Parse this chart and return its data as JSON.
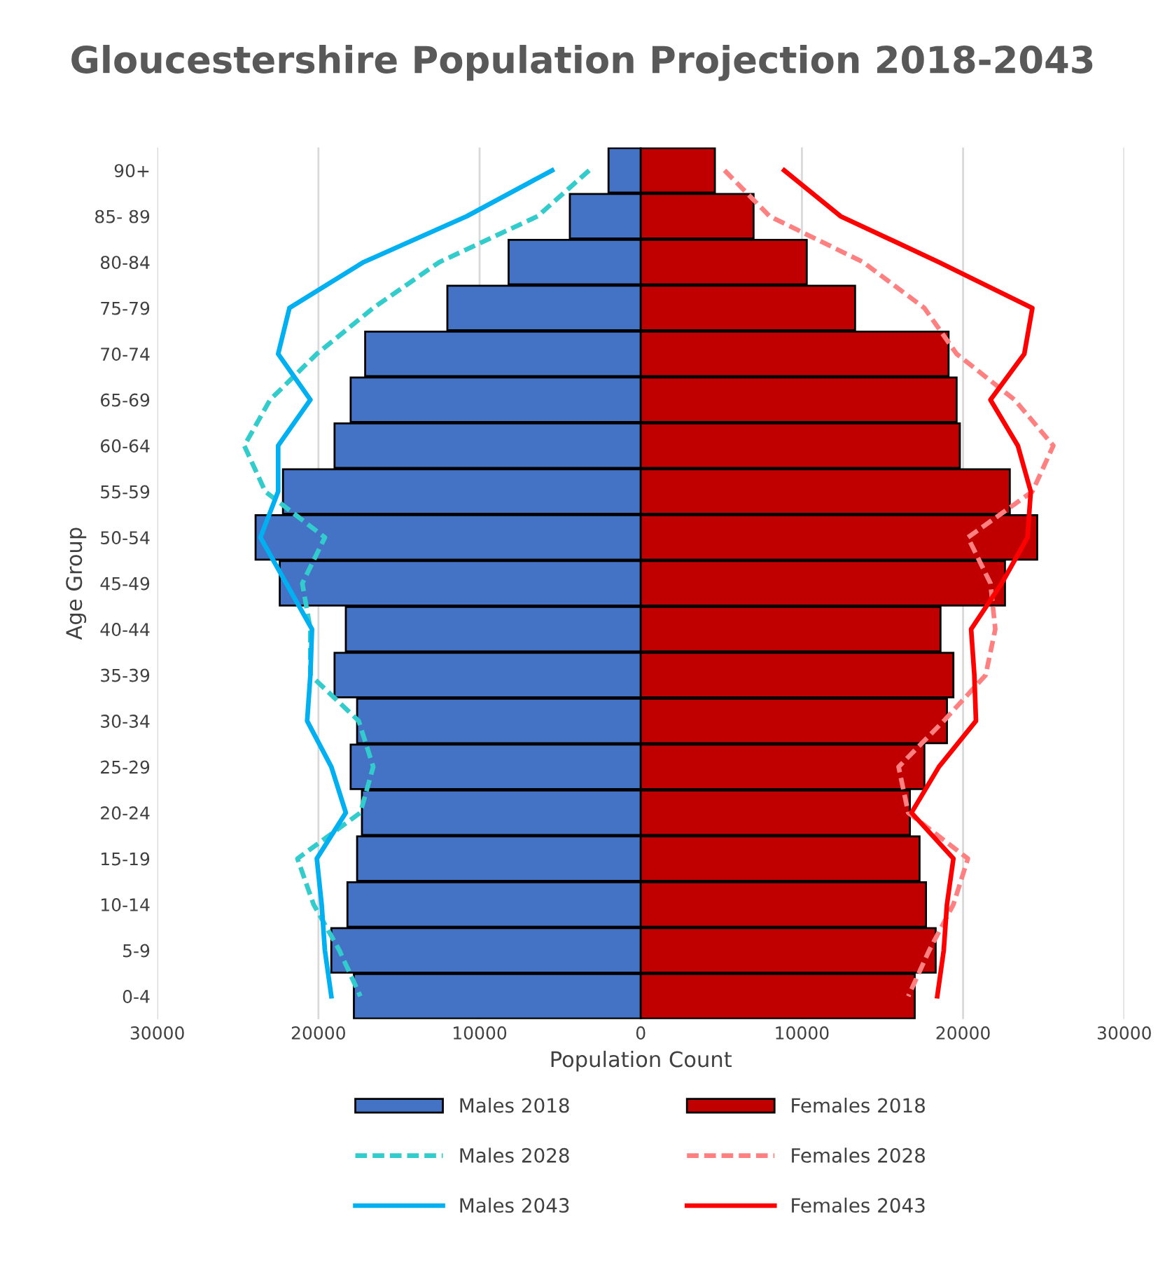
{
  "chart_data": {
    "type": "bar",
    "orientation": "horizontal",
    "title": "Gloucestershire Population Projection 2018-2043",
    "xlabel": "Population Count",
    "ylabel": "Age Group",
    "categories": [
      "90+",
      "85- 89",
      "80-84",
      "75-79",
      "70-74",
      "65-69",
      "60-64",
      "55-59",
      "50-54",
      "45-49",
      "40-44",
      "35-39",
      "30-34",
      "25-29",
      "20-24",
      "15-19",
      "10-14",
      "5-9",
      "0-4"
    ],
    "series": [
      {
        "name": "Males 2018",
        "color": "#4472c4",
        "values": [
          -2000,
          -4400,
          -8200,
          -12000,
          -17100,
          -18000,
          -19000,
          -22200,
          -23900,
          -22400,
          -18300,
          -19000,
          -17600,
          -18000,
          -17300,
          -17600,
          -18200,
          -19200,
          -17800
        ]
      },
      {
        "name": "Males 2028",
        "type": "line",
        "line_style": "dashed",
        "color": "#33cccc",
        "values": [
          -3200,
          -6400,
          -12500,
          -16600,
          -20100,
          -23000,
          -24600,
          -23300,
          -19600,
          -21000,
          -20500,
          -20500,
          -17500,
          -16600,
          -17400,
          -21300,
          -20300,
          -18700,
          -17400
        ]
      },
      {
        "name": "Males 2043",
        "type": "line",
        "line_style": "solid",
        "color": "#00b0f0",
        "values": [
          -5500,
          -10800,
          -17200,
          -21800,
          -22500,
          -20500,
          -22500,
          -22500,
          -23600,
          -22000,
          -20400,
          -20500,
          -20700,
          -19200,
          -18300,
          -20100,
          -19800,
          -19600,
          -19200
        ]
      },
      {
        "name": "Females 2018",
        "color": "#c00000",
        "values": [
          4600,
          7000,
          10300,
          13300,
          19100,
          19600,
          19800,
          22900,
          24600,
          22600,
          18600,
          19400,
          19000,
          17600,
          16700,
          17300,
          17700,
          18300,
          17000
        ]
      },
      {
        "name": "Females 2028",
        "type": "line",
        "line_style": "dashed",
        "color": "#ff8080",
        "values": [
          5200,
          8000,
          13800,
          17600,
          19600,
          23200,
          25600,
          24300,
          20300,
          21700,
          22000,
          21400,
          18800,
          16000,
          16600,
          20300,
          19400,
          17900,
          16600
        ]
      },
      {
        "name": "Females 2043",
        "type": "line",
        "line_style": "solid",
        "color": "#ff0000",
        "values": [
          8900,
          12400,
          18500,
          24300,
          23800,
          21700,
          23400,
          24200,
          24000,
          22400,
          20500,
          20700,
          20800,
          18500,
          16800,
          19400,
          19000,
          18800,
          18400
        ]
      }
    ],
    "xlim": [
      -30000,
      30000
    ],
    "xticks": [
      {
        "value": -30000,
        "label": "30000"
      },
      {
        "value": -20000,
        "label": "20000"
      },
      {
        "value": -10000,
        "label": "10000"
      },
      0,
      10000,
      20000,
      30000
    ],
    "grid": "x",
    "legend": "bottom",
    "stacked": true
  }
}
